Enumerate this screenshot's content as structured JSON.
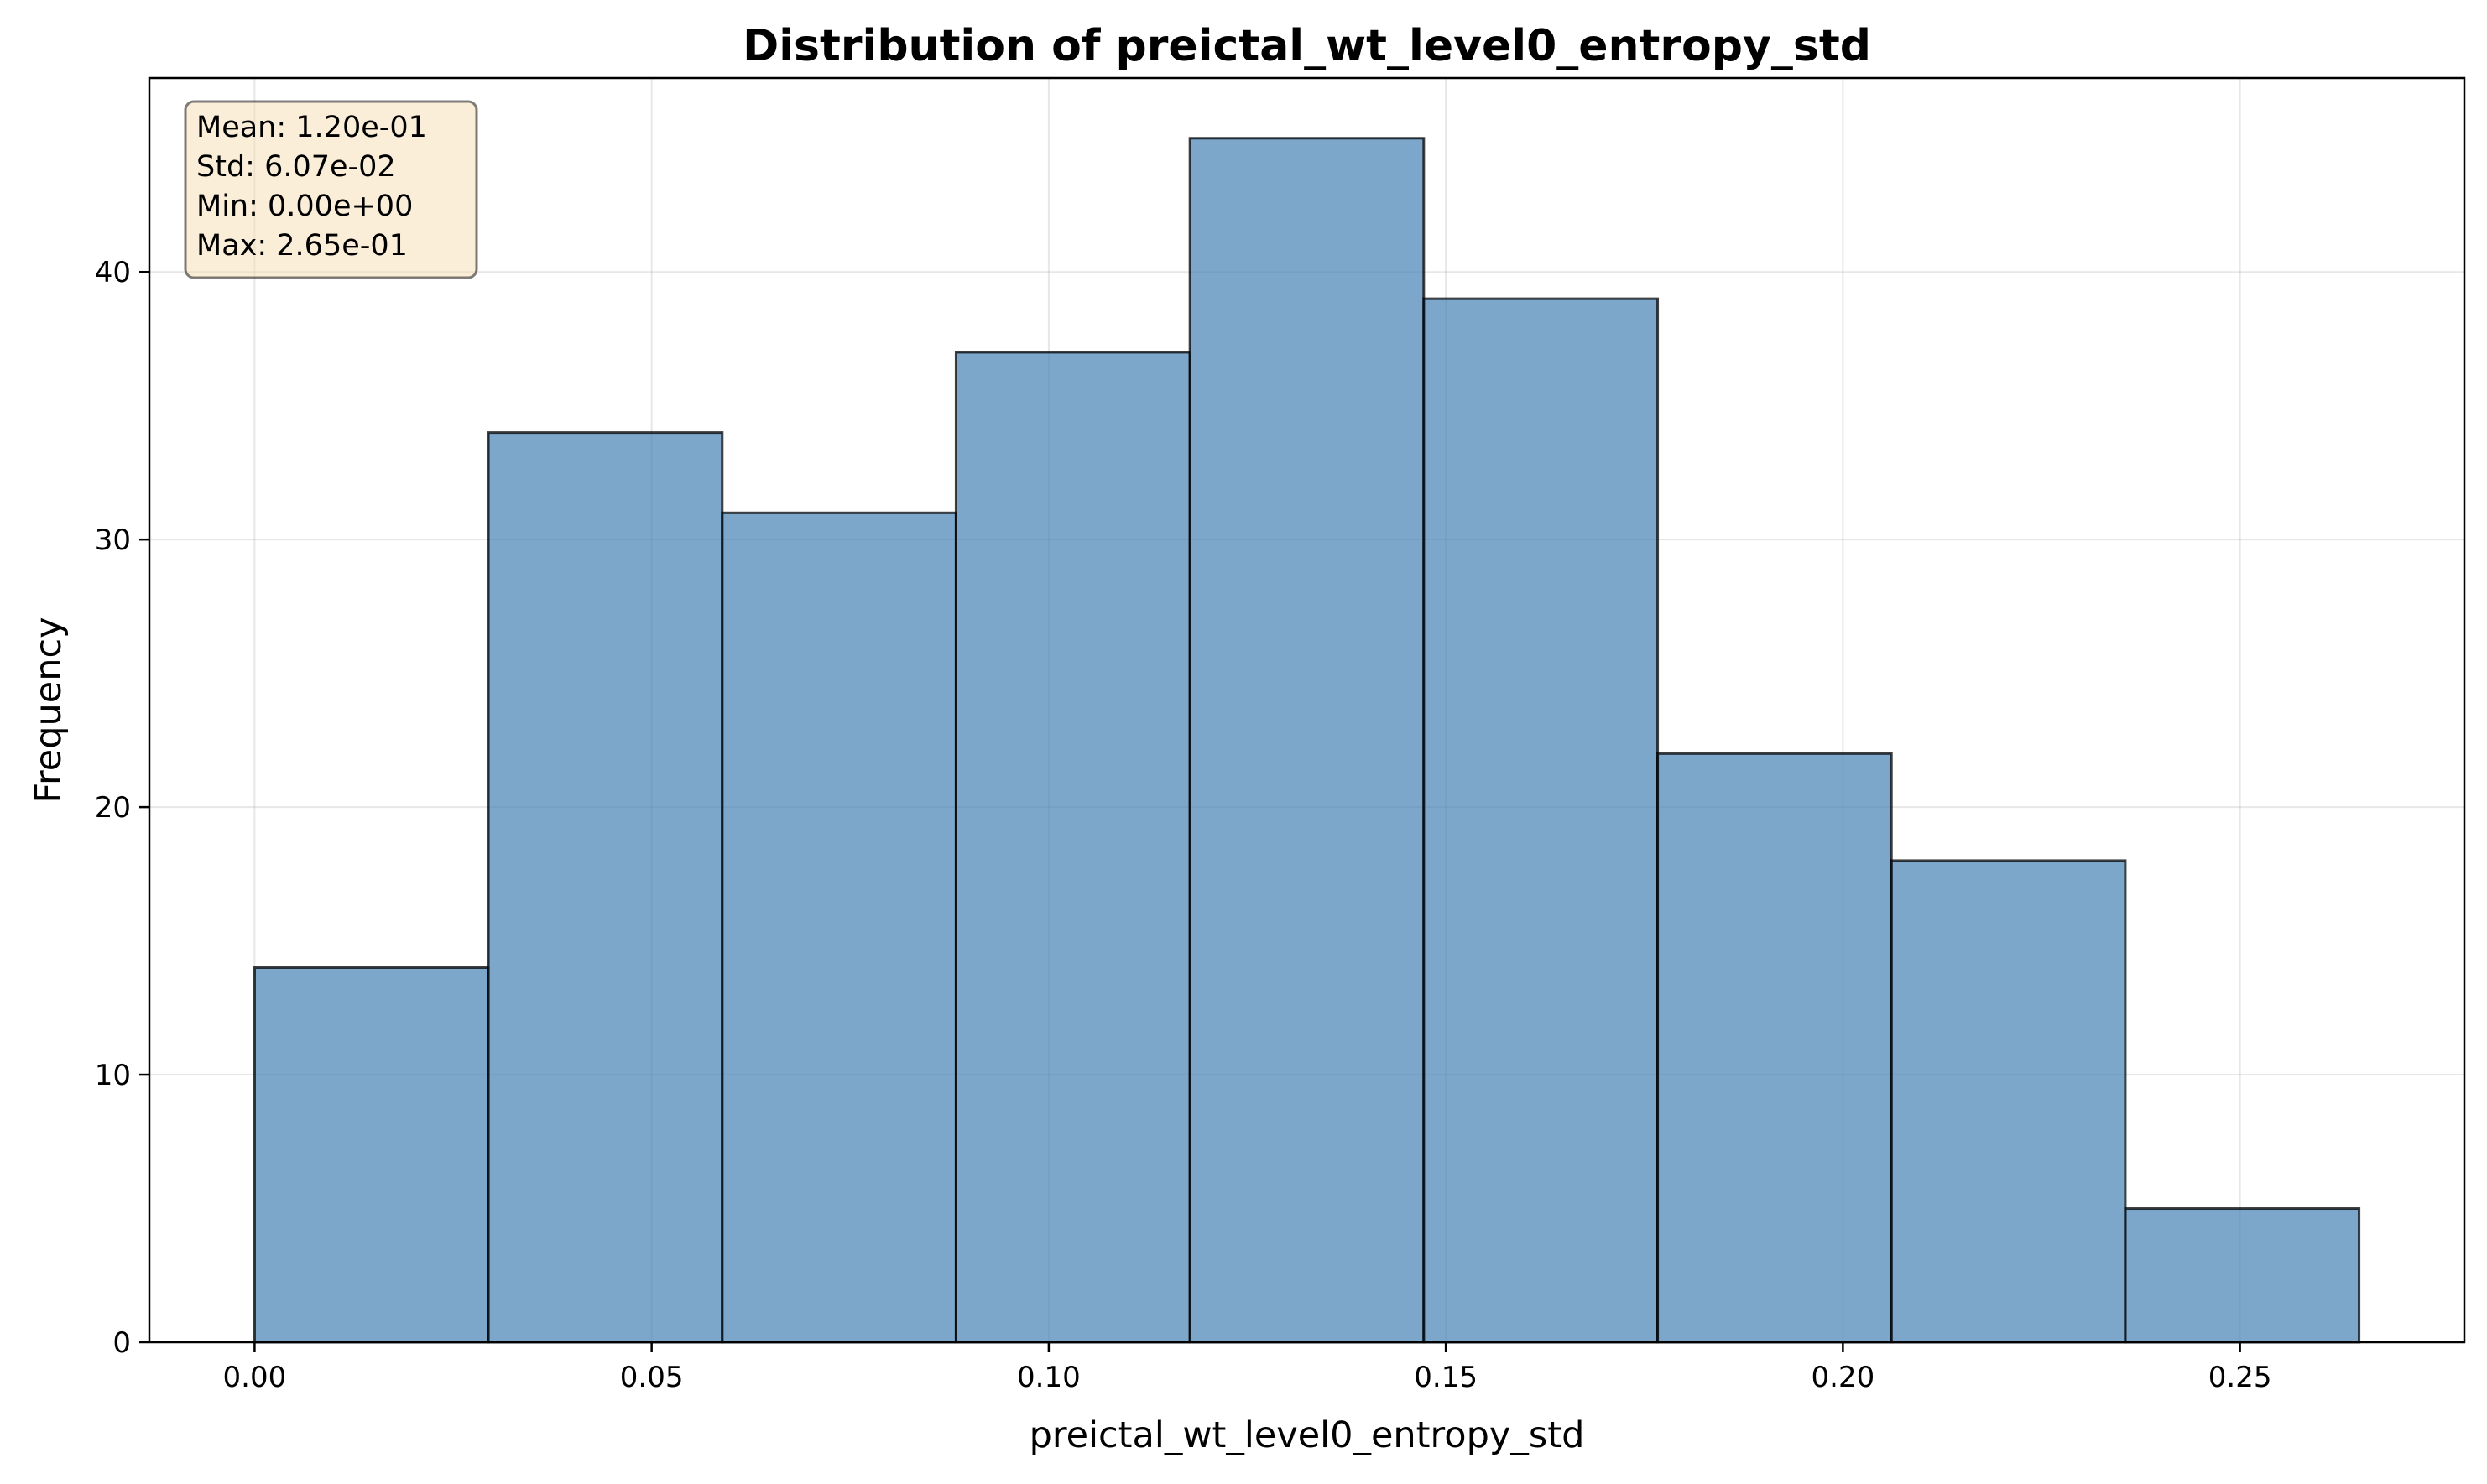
{
  "chart_data": {
    "type": "bar",
    "title": "Distribution of preictal_wt_level0_entropy_std",
    "xlabel": "preictal_wt_level0_entropy_std",
    "ylabel": "Frequency",
    "bin_edges": [
      0.0,
      0.02944,
      0.05889,
      0.08833,
      0.11778,
      0.14722,
      0.17667,
      0.20611,
      0.23556,
      0.265
    ],
    "values": [
      14,
      34,
      31,
      37,
      45,
      39,
      22,
      18,
      5
    ],
    "xlim": [
      -0.01325,
      0.27825
    ],
    "ylim": [
      0,
      47.25
    ],
    "xticks": [
      0.0,
      0.05,
      0.1,
      0.15,
      0.2,
      0.25
    ],
    "xtick_labels": [
      "0.00",
      "0.05",
      "0.10",
      "0.15",
      "0.20",
      "0.25"
    ],
    "yticks": [
      0,
      10,
      20,
      30,
      40
    ],
    "ytick_labels": [
      "0",
      "10",
      "20",
      "30",
      "40"
    ],
    "grid": true,
    "bar_color": "#4682b4",
    "bar_opacity": 0.7,
    "edge_color": "#000000",
    "stats_box": {
      "lines": [
        "Mean: 1.20e-01",
        "Std: 6.07e-02",
        "Min: 0.00e+00",
        "Max: 2.65e-01"
      ],
      "placement": "top-left",
      "facecolor": "#f5deb3",
      "edgecolor": "#000000"
    }
  }
}
